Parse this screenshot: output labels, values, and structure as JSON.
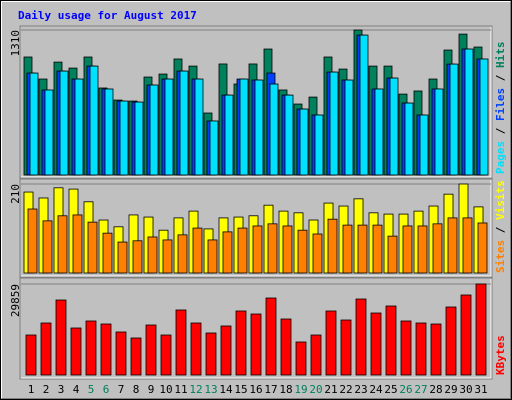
{
  "chart_data": {
    "type": "bar",
    "title": "Daily usage for August 2017",
    "categories": [
      "1",
      "2",
      "3",
      "4",
      "5",
      "6",
      "7",
      "8",
      "9",
      "10",
      "11",
      "12",
      "13",
      "14",
      "15",
      "16",
      "17",
      "18",
      "19",
      "20",
      "21",
      "22",
      "23",
      "24",
      "25",
      "26",
      "27",
      "28",
      "29",
      "30",
      "31"
    ],
    "category_colors": [
      "#000000",
      "#000000",
      "#000000",
      "#000000",
      "#00805c",
      "#00805c",
      "#000000",
      "#000000",
      "#000000",
      "#000000",
      "#000000",
      "#00805c",
      "#00805c",
      "#000000",
      "#000000",
      "#000000",
      "#000000",
      "#000000",
      "#00805c",
      "#00805c",
      "#000000",
      "#000000",
      "#000000",
      "#000000",
      "#000000",
      "#00805c",
      "#00805c",
      "#000000",
      "#000000",
      "#000000",
      "#000000"
    ],
    "panels": [
      {
        "ylim": [
          0,
          1310
        ],
        "yticks": [
          1310
        ],
        "series": [
          {
            "name": "Hits",
            "color": "#00805c",
            "values": [
              1066,
              867,
              1020,
              966,
              1066,
              786,
              677,
              668,
              885,
              912,
              1048,
              984,
              560,
              1003,
              822,
              1003,
              1138,
              768,
              641,
              704,
              1066,
              957,
              1310,
              984,
              984,
              731,
              759,
              867,
              1129,
              1273,
              1156
            ]
          },
          {
            "name": "Files",
            "color": "#0040ff",
            "values": [
              921,
              768,
              939,
              867,
              984,
              777,
              668,
              659,
              813,
              867,
              939,
              867,
              488,
              722,
              867,
              858,
              921,
              722,
              596,
              542,
              930,
              858,
              1264,
              777,
              876,
              650,
              542,
              777,
              1002,
              1138,
              1048
            ]
          },
          {
            "name": "Pages",
            "color": "#00e0ff",
            "values": [
              921,
              768,
              939,
              867,
              984,
              777,
              668,
              659,
              813,
              867,
              939,
              867,
              488,
              722,
              867,
              858,
              822,
              722,
              596,
              542,
              930,
              858,
              1264,
              777,
              876,
              650,
              542,
              777,
              1002,
              1138,
              1048
            ]
          }
        ]
      },
      {
        "ylim": [
          0,
          210
        ],
        "yticks": [
          210
        ],
        "series": [
          {
            "name": "Visits",
            "color": "#ffff00",
            "values": [
              191,
              177,
              201,
              198,
              168,
              125,
              109,
              137,
              132,
              101,
              130,
              146,
              104,
              130,
              132,
              135,
              160,
              146,
              142,
              125,
              165,
              158,
              175,
              142,
              139,
              139,
              146,
              158,
              186,
              210,
              156
            ]
          },
          {
            "name": "Sites",
            "color": "#ff8000",
            "values": [
              151,
              123,
              135,
              137,
              120,
              94,
              73,
              76,
              85,
              78,
              90,
              106,
              78,
              97,
              106,
              111,
              116,
              111,
              101,
              92,
              127,
              113,
              113,
              113,
              87,
              111,
              111,
              116,
              130,
              130,
              118
            ]
          }
        ]
      },
      {
        "ylim": [
          0,
          29859
        ],
        "yticks": [
          29859
        ],
        "series": [
          {
            "name": "KBytes",
            "color": "#ff0000",
            "values": [
              13120,
              17060,
              24600,
              15420,
              17720,
              16730,
              14110,
              12140,
              16400,
              13120,
              21330,
              17060,
              13780,
              16080,
              21000,
              20010,
              25260,
              18370,
              10830,
              13120,
              21000,
              18040,
              24930,
              20340,
              22640,
              17720,
              17060,
              16730,
              22310,
              26250,
              29859
            ]
          }
        ]
      }
    ]
  }
}
